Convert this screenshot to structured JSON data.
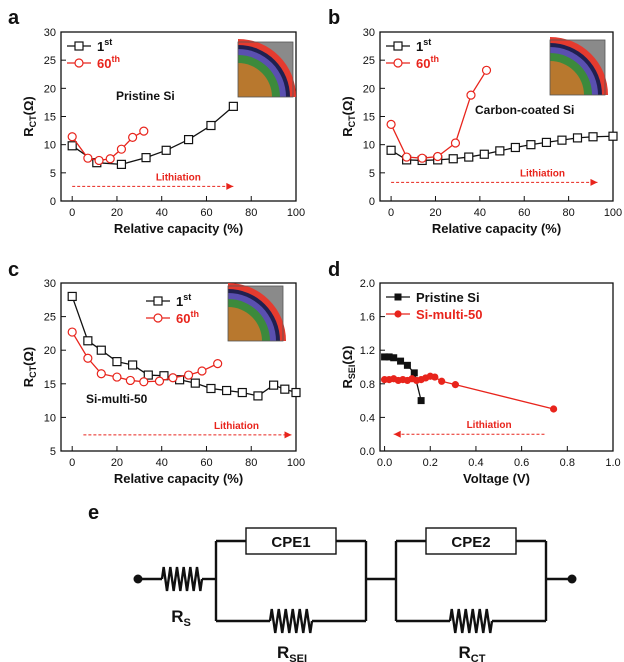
{
  "colors": {
    "black": "#111111",
    "red": "#e8241c",
    "arrow": "#e8241c"
  },
  "panels": [
    {
      "letter": "a",
      "annotation": "Pristine Si",
      "lithiation": "Lithiation"
    },
    {
      "letter": "b",
      "annotation": "Carbon-coated Si",
      "lithiation": "Lithiation"
    },
    {
      "letter": "c",
      "annotation": "Si-multi-50",
      "lithiation": "Lithiation"
    },
    {
      "letter": "d",
      "annotation": "",
      "lithiation": "Lithiation"
    },
    {
      "letter": "e"
    }
  ],
  "chart_data": [
    {
      "panel": "a",
      "type": "line",
      "xlabel": "Relative capacity (%)",
      "ylabel": "RCT(Ω)",
      "xlim": [
        -5,
        100
      ],
      "ylim": [
        0,
        30
      ],
      "xticks": [
        0,
        20,
        40,
        60,
        80,
        100
      ],
      "yticks": [
        0,
        5,
        10,
        15,
        20,
        25,
        30
      ],
      "legend": "top-left",
      "series": [
        {
          "name": "1st",
          "marker": "open-square",
          "color": "#111111",
          "x": [
            0,
            11,
            22,
            33,
            42,
            52,
            62,
            72
          ],
          "y": [
            9.8,
            6.8,
            6.5,
            7.7,
            9,
            10.9,
            13.4,
            16.8
          ]
        },
        {
          "name": "60th",
          "marker": "open-circle",
          "color": "#e8241c",
          "x": [
            0,
            7,
            12,
            17,
            22,
            27,
            32
          ],
          "y": [
            11.4,
            7.6,
            7.2,
            7.5,
            9.2,
            11.3,
            12.4
          ]
        }
      ]
    },
    {
      "panel": "b",
      "type": "line",
      "xlabel": "Relative capacity (%)",
      "ylabel": "RCT(Ω)",
      "xlim": [
        -5,
        100
      ],
      "ylim": [
        0,
        30
      ],
      "xticks": [
        0,
        20,
        40,
        60,
        80,
        100
      ],
      "yticks": [
        0,
        5,
        10,
        15,
        20,
        25,
        30
      ],
      "legend": "top-left",
      "series": [
        {
          "name": "1st",
          "marker": "open-square",
          "color": "#111111",
          "x": [
            0,
            7,
            14,
            21,
            28,
            35,
            42,
            49,
            56,
            63,
            70,
            77,
            84,
            91,
            100
          ],
          "y": [
            9,
            7.3,
            7.2,
            7.3,
            7.5,
            7.8,
            8.3,
            8.9,
            9.5,
            10,
            10.4,
            10.8,
            11.2,
            11.4,
            11.5
          ]
        },
        {
          "name": "60th",
          "marker": "open-circle",
          "color": "#e8241c",
          "x": [
            0,
            7,
            14,
            21,
            29,
            36,
            43
          ],
          "y": [
            13.6,
            7.8,
            7.6,
            7.9,
            10.3,
            18.8,
            23.2
          ]
        }
      ]
    },
    {
      "panel": "c",
      "type": "line",
      "xlabel": "Relative capacity (%)",
      "ylabel": "RCT(Ω)",
      "xlim": [
        -5,
        100
      ],
      "ylim": [
        5,
        30
      ],
      "xticks": [
        0,
        20,
        40,
        60,
        80,
        100
      ],
      "yticks": [
        5,
        10,
        15,
        20,
        25,
        30
      ],
      "legend": "top-center",
      "series": [
        {
          "name": "1st",
          "marker": "open-square",
          "color": "#111111",
          "x": [
            0,
            7,
            13,
            20,
            27,
            34,
            41,
            48,
            55,
            62,
            69,
            76,
            83,
            90,
            95,
            100
          ],
          "y": [
            28,
            21.4,
            20,
            18.3,
            17.8,
            16.3,
            16.2,
            15.6,
            15.1,
            14.3,
            14,
            13.7,
            13.2,
            14.8,
            14.2,
            13.7
          ]
        },
        {
          "name": "60th",
          "marker": "open-circle",
          "color": "#e8241c",
          "x": [
            0,
            7,
            13,
            20,
            26,
            32,
            39,
            45,
            52,
            58,
            65
          ],
          "y": [
            22.7,
            18.8,
            16.5,
            16,
            15.5,
            15.3,
            15.4,
            15.9,
            16.3,
            16.9,
            18
          ]
        }
      ]
    },
    {
      "panel": "d",
      "type": "line",
      "xlabel": "Voltage (V)",
      "ylabel": "RSEI(Ω)",
      "xlim": [
        -0.02,
        1.0
      ],
      "ylim": [
        0,
        2.0
      ],
      "xticks": [
        0.0,
        0.2,
        0.4,
        0.6,
        0.8,
        1.0
      ],
      "yticks": [
        0.0,
        0.4,
        0.8,
        1.2,
        1.6,
        2.0
      ],
      "legend": "top-left",
      "series": [
        {
          "name": "Pristine Si",
          "marker": "filled-square",
          "color": "#111111",
          "x": [
            0.0,
            0.02,
            0.04,
            0.07,
            0.1,
            0.13,
            0.16
          ],
          "y": [
            1.12,
            1.12,
            1.11,
            1.07,
            1.02,
            0.93,
            0.6
          ]
        },
        {
          "name": "Si-multi-50",
          "marker": "filled-circle",
          "color": "#e8241c",
          "x": [
            0.0,
            0.02,
            0.04,
            0.06,
            0.08,
            0.1,
            0.12,
            0.14,
            0.16,
            0.18,
            0.2,
            0.22,
            0.25,
            0.31,
            0.74
          ],
          "y": [
            0.85,
            0.85,
            0.86,
            0.84,
            0.85,
            0.84,
            0.86,
            0.84,
            0.85,
            0.87,
            0.89,
            0.88,
            0.83,
            0.79,
            0.5
          ]
        }
      ]
    }
  ],
  "circuit": {
    "elements": [
      {
        "type": "resistor",
        "label": "R",
        "sub": "S"
      },
      {
        "type": "cpe",
        "label": "CPE1"
      },
      {
        "type": "resistor",
        "label": "R",
        "sub": "SEI"
      },
      {
        "type": "cpe",
        "label": "CPE2"
      },
      {
        "type": "resistor",
        "label": "R",
        "sub": "CT"
      }
    ]
  }
}
